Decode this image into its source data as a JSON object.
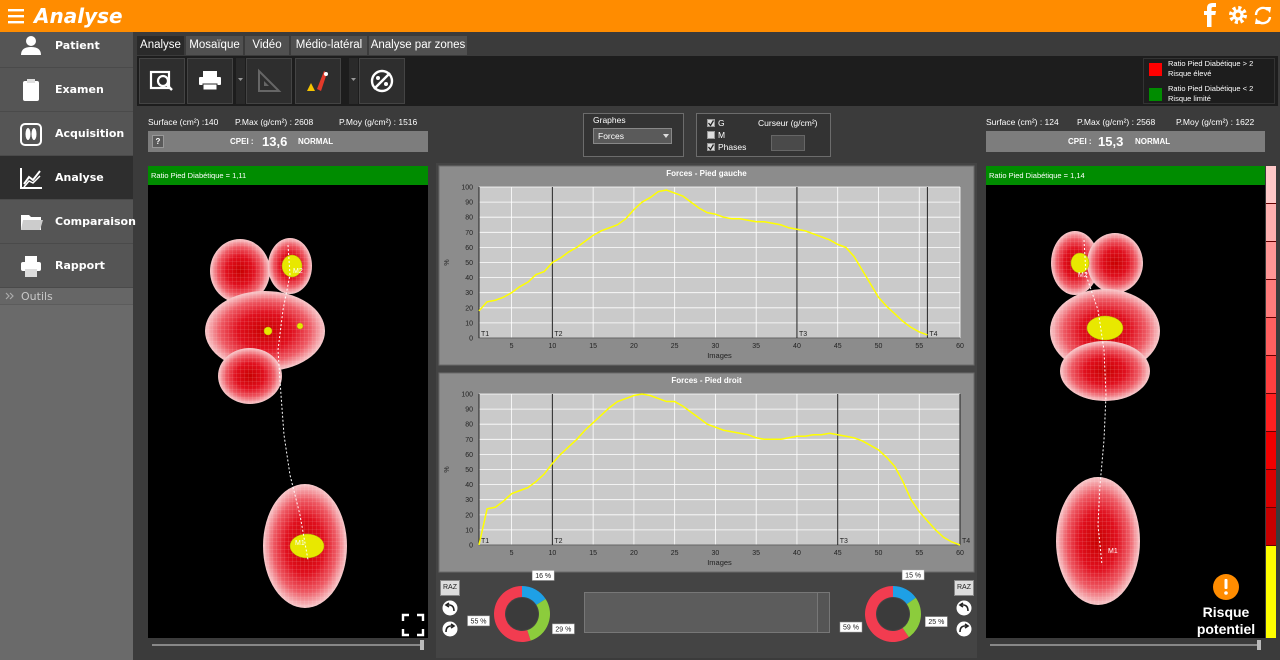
{
  "header": {
    "title": "Analyse"
  },
  "sidebar": {
    "items": [
      "Patient",
      "Examen",
      "Acquisition",
      "Analyse",
      "Comparaison",
      "Rapport"
    ],
    "section": "Outils"
  },
  "tabs": [
    "Analyse",
    "Mosaïque",
    "Vidéo",
    "Médio-latéral",
    "Analyse par zones"
  ],
  "legend": {
    "items": [
      {
        "label": "Ratio Pied Diabétique > 2",
        "sub": "Risque élevé",
        "color": "#ff0000"
      },
      {
        "label": "Ratio Pied Diabétique < 2",
        "sub": "Risque limité",
        "color": "#008c00"
      }
    ]
  },
  "left_foot": {
    "stats": [
      "Surface (cm²) :140",
      "P.Max (g/cm²) : 2608",
      "P.Moy (g/cm²) : 1516"
    ],
    "help": "?",
    "cpei_label": "CPEI :",
    "cpei": "13,6",
    "status": "NORMAL",
    "ratio": "Ratio Pied Diabétique = 1,11",
    "markers": [
      "M2",
      "M1"
    ]
  },
  "right_foot": {
    "stats": [
      "Surface (cm²) : 124",
      "P.Max (g/cm²) : 2568",
      "P.Moy (g/cm²) : 1622"
    ],
    "cpei_label": "CPEI :",
    "cpei": "15,3",
    "status": "NORMAL",
    "ratio": "Ratio Pied Diabétique = 1,14",
    "markers": [
      "M2",
      "M1"
    ]
  },
  "controls": {
    "graphs_label": "Graphes",
    "graph_select": "Forces",
    "checkboxes": [
      {
        "label": "G",
        "checked": true
      },
      {
        "label": "M",
        "checked": false
      },
      {
        "label": "Phases",
        "checked": true
      }
    ],
    "cursor_label": "Curseur (g/cm²)"
  },
  "reset_buttons": [
    "RAZ",
    "RAZ"
  ],
  "risk": {
    "label": "Risque potentiel"
  },
  "chart_data": [
    {
      "type": "line",
      "title": "Forces - Pied gauche",
      "x_label": "Images",
      "y_label": "%",
      "color": "#ffff00",
      "grid": true,
      "x": [
        1,
        2,
        3,
        4,
        5,
        6,
        7,
        8,
        9,
        10,
        11,
        12,
        13,
        14,
        15,
        16,
        17,
        18,
        19,
        20,
        21,
        22,
        23,
        24,
        25,
        26,
        27,
        28,
        29,
        30,
        31,
        32,
        33,
        34,
        35,
        36,
        37,
        38,
        39,
        40,
        41,
        42,
        43,
        44,
        45,
        46,
        47,
        48,
        49,
        50,
        51,
        52,
        53,
        54,
        55,
        56
      ],
      "values": [
        18,
        24,
        25,
        27,
        30,
        34,
        37,
        42,
        44,
        50,
        53,
        57,
        60,
        64,
        68,
        71,
        73,
        75,
        79,
        85,
        90,
        93,
        97,
        98,
        96,
        94,
        90,
        86,
        83,
        82,
        80,
        79,
        79,
        78,
        77,
        77,
        76,
        75,
        73,
        72,
        71,
        69,
        67,
        65,
        62,
        60,
        54,
        45,
        36,
        27,
        21,
        16,
        11,
        7,
        4,
        2
      ],
      "xlim": [
        1,
        60
      ],
      "ylim": [
        0,
        100
      ],
      "xticks": [
        5,
        10,
        15,
        20,
        25,
        30,
        35,
        40,
        45,
        50,
        55,
        60
      ],
      "yticks": [
        0,
        10,
        20,
        30,
        40,
        50,
        60,
        70,
        80,
        90,
        100
      ],
      "phases": [
        {
          "value": 1,
          "label": "T1"
        },
        {
          "value": 10,
          "label": "T2"
        },
        {
          "value": 40,
          "label": "T3"
        },
        {
          "value": 56,
          "label": "T4"
        }
      ]
    },
    {
      "type": "line",
      "title": "Forces - Pied droit",
      "x_label": "Images",
      "y_label": "%",
      "color": "#ffff00",
      "grid": true,
      "x": [
        1,
        2,
        3,
        4,
        5,
        6,
        7,
        8,
        9,
        10,
        11,
        12,
        13,
        14,
        15,
        16,
        17,
        18,
        19,
        20,
        21,
        22,
        23,
        24,
        25,
        26,
        27,
        28,
        29,
        30,
        31,
        32,
        33,
        34,
        35,
        36,
        37,
        38,
        39,
        40,
        41,
        42,
        43,
        44,
        45,
        46,
        47,
        48,
        49,
        50,
        51,
        52,
        53,
        54,
        55,
        56,
        57,
        58,
        59,
        60
      ],
      "values": [
        0,
        24,
        25,
        29,
        34,
        36,
        38,
        42,
        47,
        54,
        60,
        65,
        70,
        76,
        81,
        86,
        91,
        95,
        97,
        99,
        100,
        99,
        97,
        95,
        95,
        92,
        88,
        84,
        80,
        78,
        76,
        75,
        74,
        73,
        71,
        70,
        70,
        70,
        71,
        72,
        72,
        73,
        73,
        74,
        73,
        72,
        71,
        69,
        66,
        63,
        58,
        52,
        42,
        30,
        22,
        16,
        10,
        5,
        2,
        0
      ],
      "xlim": [
        1,
        60
      ],
      "ylim": [
        0,
        100
      ],
      "xticks": [
        5,
        10,
        15,
        20,
        25,
        30,
        35,
        40,
        45,
        50,
        55,
        60
      ],
      "yticks": [
        0,
        10,
        20,
        30,
        40,
        50,
        60,
        70,
        80,
        90,
        100
      ],
      "phases": [
        {
          "value": 1,
          "label": "T1"
        },
        {
          "value": 10,
          "label": "T2"
        },
        {
          "value": 45,
          "label": "T3"
        },
        {
          "value": 60,
          "label": "T4"
        }
      ]
    },
    {
      "type": "donut",
      "values": [
        55,
        16,
        29
      ],
      "value_labels": [
        "55 %",
        "16 %",
        "29 %"
      ],
      "colors": [
        "#f23c50",
        "#1ea0e6",
        "#8ccc3c"
      ]
    },
    {
      "type": "donut",
      "values": [
        59,
        15,
        25
      ],
      "value_labels": [
        "59 %",
        "15 %",
        "25 %"
      ],
      "colors": [
        "#f23c50",
        "#1ea0e6",
        "#8ccc3c"
      ]
    }
  ]
}
